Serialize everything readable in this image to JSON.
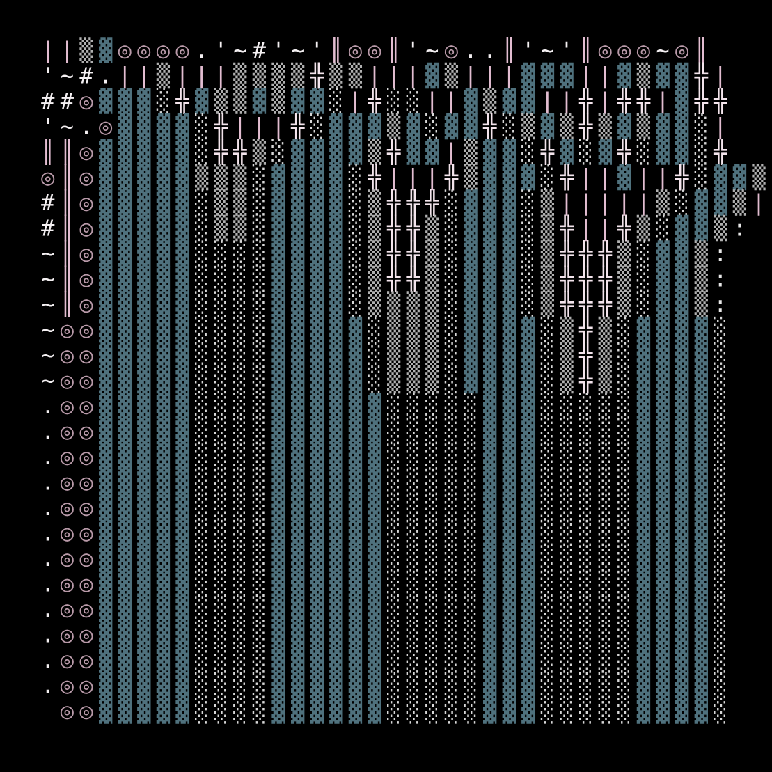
{
  "rows": [
    "||▒▓◎◎◎◎.'~#'~'║◎◎║'~◎..║'~'║◎◎◎~◎║",
    "'~#.||▒|||▒▒▒▒╬▒▒|||▓▒|||▓▓▓||▓▒▓▓╬|",
    "##◎▓▓▓░╬▓▒▒▓▒▓▓░|╬░░||▓▒▓▓||╬|╬╬|▓╬╬",
    "'~.◎▓▓▓▓░╬|||╬░▓▓▓▒▓░▓▓╬░▒▓▒╬▒▓▒▓▓░|",
    "║║◎▓▓▓▓▓░╬╬▒░▓▓▓▓▒╬▓▓|▒▓▓░╬▓░▓╬░▓▓░╬",
    "◎║◎▓▓▓▓▓▒▒▒░▓▓▓▓░╬|||╬▒▓▓▓░╬||▓||╬░▓▓▒|",
    "#║◎▓▓▓▓▓░▒▒░▓▓▓▓░▒╬╬╬░▓▓▓░▒|||||▒░▓▓▒|",
    "#║◎▓▓▓▓▓░▒▒░▓▓▓▓░▒╬╬▒░▓▓▓░▒╬||╬▒░▓▓▒:",
    "~║◎▓▓▓▓▓░░░░▓▓▓▓░▒╬╬▒░▓▓▓░▒╬╬╬▒░▓▓▒:",
    "~║◎▓▓▓▓▓░░░░▓▓▓▓░▒╬╬▒░▓▓▓░▒╬╬╬▒░▓▓▒:",
    "~║◎▓▓▓▓▓░░░░▓▓▓▓░▒▒▒▒░▓▓▓░▒╬╬╬▒░▓▓▒:",
    "~◎◎▓▓▓▓▓░░░░▓▓▓▓▓░▒▒▒░▓▓▓▓░▒╬▒░▓▓▓▓░",
    "~◎◎▓▓▓▓▓░░░░▓▓▓▓▓░▒▒▒░▓▓▓▓░▒╬▒░▓▓▓▓░",
    "~◎◎▓▓▓▓▓░░░░▓▓▓▓▓░▒▒▒░▓▓▓▓░▒╬▒░▓▓▓▓░",
    ".◎◎▓▓▓▓▓░░░░▓▓▓▓▓▓░░░░░▓▓▓░░░░░▓▓▓▓░",
    ".◎◎▓▓▓▓▓░░░░▓▓▓▓▓▓░░░░░▓▓▓░░░░░▓▓▓▓░",
    ".◎◎▓▓▓▓▓░░░░▓▓▓▓▓▓░░░░░▓▓▓░░░░░▓▓▓▓░",
    ".◎◎▓▓▓▓▓░░░░▓▓▓▓▓▓░░░░░▓▓▓░░░░░▓▓▓▓░",
    ".◎◎▓▓▓▓▓░░░░▓▓▓▓▓▓░░░░░▓▓▓░░░░░▓▓▓▓░",
    ".◎◎▓▓▓▓▓░░░░▓▓▓▓▓▓░░░░░▓▓▓░░░░░▓▓▓▓░",
    ".◎◎▓▓▓▓▓░░░░▓▓▓▓▓▓░░░░░▓▓▓░░░░░▓▓▓▓░",
    ".◎◎▓▓▓▓▓░░░░▓▓▓▓▓▓░░░░░▓▓▓░░░░░▓▓▓▓░",
    ".◎◎▓▓▓▓▓░░░░▓▓▓▓▓▓░░░░░▓▓▓░░░░░▓▓▓▓░",
    ".◎◎▓▓▓▓▓░░░░▓▓▓▓▓▓░░░░░▓▓▓░░░░░▓▓▓▓░",
    ".◎◎▓▓▓▓▓░░░░▓▓▓▓▓▓░░░░░▓▓▓░░░░░▓▓▓▓░",
    ".◎◎▓▓▓▓▓░░░░▓▓▓▓▓▓░░░░░▓▓▓░░░░░▓▓▓▓░",
    " ◎◎▓▓▓▓▓░░░░▓▓▓▓▓▓░░░░░▓▓▓░░░░░▓▓▓▓░"
  ]
}
